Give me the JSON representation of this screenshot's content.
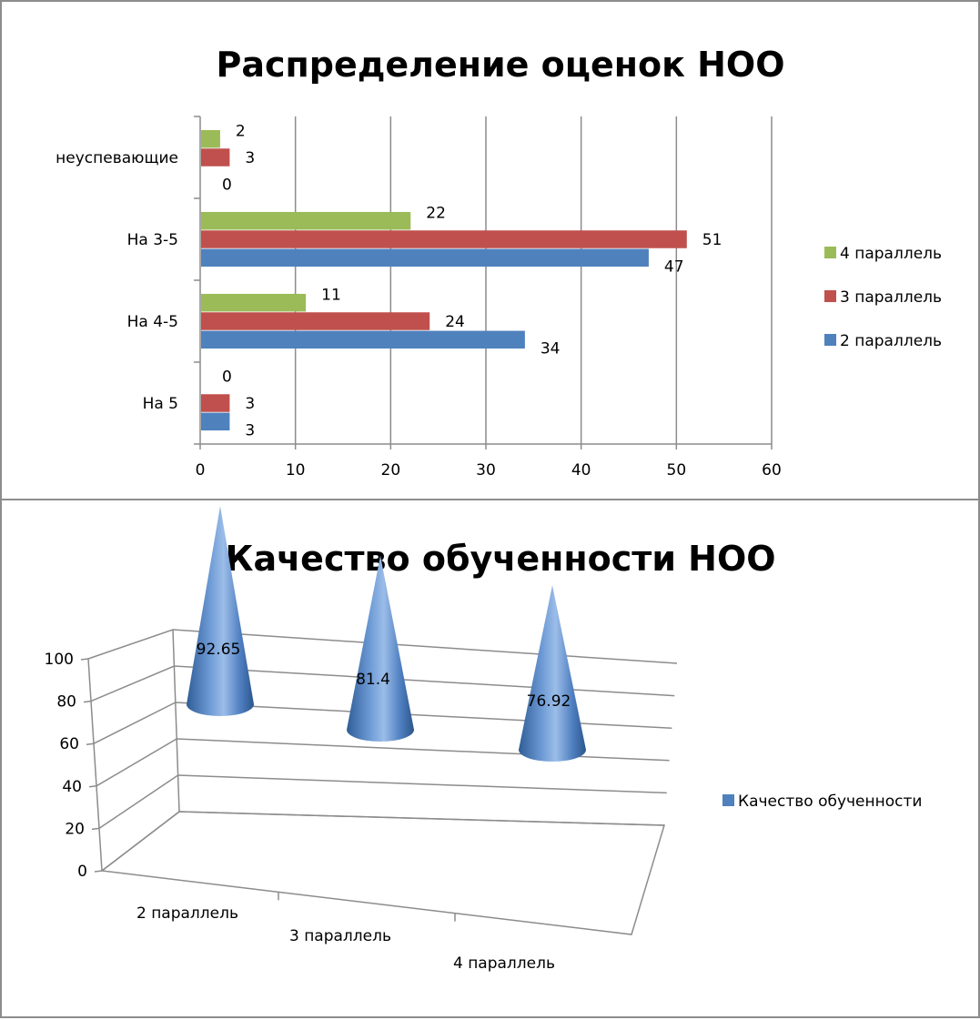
{
  "chart_data": [
    {
      "type": "bar",
      "orientation": "horizontal",
      "title": "Распределение оценок НОО",
      "categories": [
        "неуспевающие",
        "На 3-5",
        "На 4-5",
        "На 5"
      ],
      "series": [
        {
          "name": "4 параллель",
          "values": [
            2,
            22,
            11,
            0
          ],
          "color": "#9bbb59"
        },
        {
          "name": "3 параллель",
          "values": [
            3,
            51,
            24,
            3
          ],
          "color": "#c0504d"
        },
        {
          "name": "2 параллель",
          "values": [
            0,
            47,
            34,
            3
          ],
          "color": "#4f81bd"
        }
      ],
      "xticks": [
        "0",
        "10",
        "20",
        "30",
        "40",
        "50",
        "60"
      ],
      "xlim": [
        0,
        60
      ],
      "grid": true,
      "legend": "right"
    },
    {
      "type": "bar",
      "style": "3d-cone",
      "title": "Качество обученности НОО",
      "categories": [
        "2 параллель",
        "3 параллель",
        "4 параллель"
      ],
      "series": [
        {
          "name": "Качество обученности",
          "values": [
            92.65,
            81.4,
            76.92
          ],
          "labels": [
            "92.65",
            "81.4",
            "76.92"
          ],
          "color": "#4f81bd"
        }
      ],
      "yticks": [
        "0",
        "20",
        "40",
        "60",
        "80",
        "100"
      ],
      "ylim": [
        0,
        100
      ],
      "grid": true,
      "legend": "right"
    }
  ]
}
